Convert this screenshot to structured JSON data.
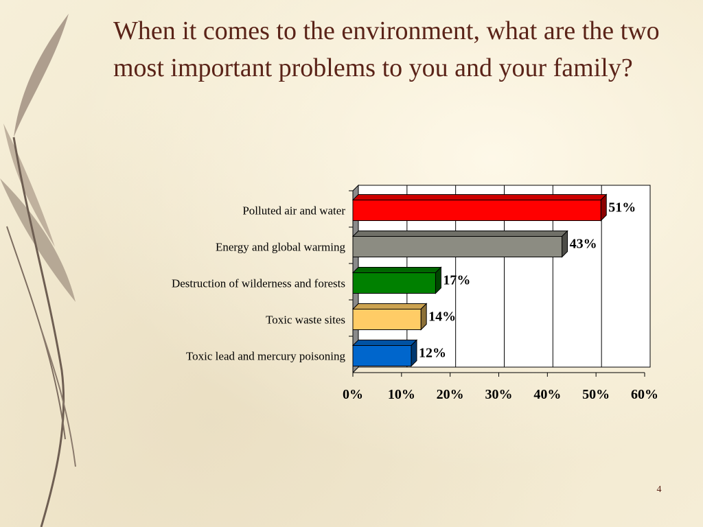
{
  "slide": {
    "title": "When it comes to the environment, what are the two most important problems to you and your family?",
    "page_number": "4"
  },
  "chart_data": {
    "type": "bar",
    "orientation": "horizontal",
    "style": "3d",
    "categories": [
      "Polluted air and water",
      "Energy and global warming",
      "Destruction of wilderness and forests",
      "Toxic waste sites",
      "Toxic lead and mercury poisoning"
    ],
    "values": [
      51,
      43,
      17,
      14,
      12
    ],
    "value_labels": [
      "51%",
      "43%",
      "17%",
      "14%",
      "12%"
    ],
    "colors": [
      "#ff0000",
      "#8c8c82",
      "#008000",
      "#ffcc66",
      "#0066cc"
    ],
    "xlim": [
      0,
      60
    ],
    "xticks": [
      "0%",
      "10%",
      "20%",
      "30%",
      "40%",
      "50%",
      "60%"
    ],
    "grid": true,
    "legend": "none",
    "title": "",
    "xlabel": "",
    "ylabel": ""
  }
}
